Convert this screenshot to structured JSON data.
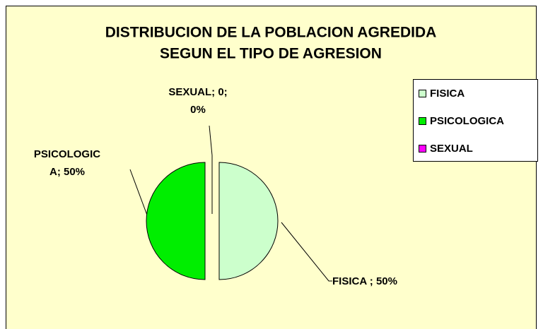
{
  "chart_data": {
    "type": "pie",
    "title": [
      "DISTRIBUCION DE LA POBLACION AGREDIDA",
      "SEGUN EL TIPO DE AGRESION"
    ],
    "categories": [
      "FISICA",
      "PSICOLOGICA",
      "SEXUAL"
    ],
    "values": [
      50,
      50,
      0
    ],
    "value_labels": [
      "FISICA ; 50%",
      "PSICOLOGICA; 50%",
      "SEXUAL; 0; 0%"
    ],
    "colors": [
      "#ccffcc",
      "#00ee00",
      "#ff00ff"
    ],
    "legend": "right"
  }
}
